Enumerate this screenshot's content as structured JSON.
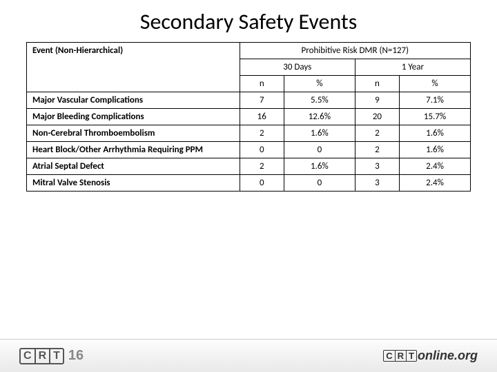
{
  "title": "Secondary Safety Events",
  "table": {
    "group_header": "Prohibitive Risk DMR (N=127)",
    "row_header": "Event (Non-Hierarchical)",
    "period1": "30 Days",
    "period2": "1 Year",
    "sub_n": "n",
    "sub_p": "%",
    "rows": [
      {
        "event": "Major Vascular Complications",
        "n1": "7",
        "p1": "5.5%",
        "n2": "9",
        "p2": "7.1%"
      },
      {
        "event": "Major Bleeding Complications",
        "n1": "16",
        "p1": "12.6%",
        "n2": "20",
        "p2": "15.7%"
      },
      {
        "event": "Non-Cerebral Thromboembolism",
        "n1": "2",
        "p1": "1.6%",
        "n2": "2",
        "p2": "1.6%"
      },
      {
        "event": "Heart Block/Other Arrhythmia Requiring PPM",
        "n1": "0",
        "p1": "0",
        "n2": "2",
        "p2": "1.6%"
      },
      {
        "event": "Atrial Septal Defect",
        "n1": "2",
        "p1": "1.6%",
        "n2": "3",
        "p2": "2.4%"
      },
      {
        "event": "Mitral Valve Stenosis",
        "n1": "0",
        "p1": "0",
        "n2": "3",
        "p2": "2.4%"
      }
    ]
  },
  "footer": {
    "left_year": "16",
    "right_text": "online.org"
  }
}
